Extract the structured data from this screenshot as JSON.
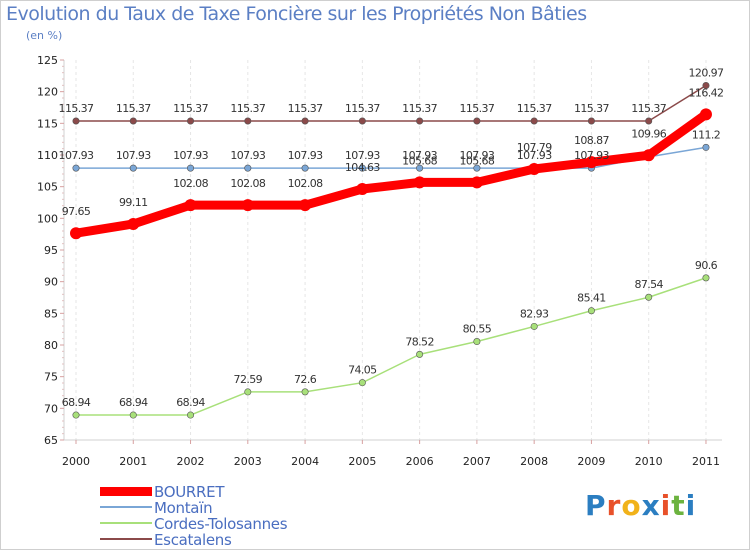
{
  "header": {
    "title": "Evolution du Taux de Taxe Foncière sur les Propriétés Non Bâties",
    "subtitle": "(en %)"
  },
  "chart_data": {
    "type": "line",
    "x": [
      "2000",
      "2001",
      "2002",
      "2003",
      "2004",
      "2005",
      "2006",
      "2007",
      "2008",
      "2009",
      "2010",
      "2011"
    ],
    "ylim": [
      65,
      125
    ],
    "yticks": [
      65,
      70,
      75,
      80,
      85,
      90,
      95,
      100,
      105,
      110,
      115,
      120,
      125
    ],
    "grid": "vertical-dashed",
    "legend_position": "bottom-left",
    "series": [
      {
        "name": "BOURRET",
        "color": "#ff0000",
        "values": [
          97.65,
          99.11,
          102.08,
          102.08,
          102.08,
          104.63,
          105.68,
          105.68,
          107.79,
          108.87,
          109.96,
          116.42
        ],
        "labels": [
          "97.65",
          "99.11",
          "102.08",
          "102.08",
          "102.08",
          "104.63",
          "105.68",
          "105.68",
          "107.79",
          "108.87",
          "109.96",
          "116.42"
        ]
      },
      {
        "name": "Montaïn",
        "color": "#7aa6d6",
        "values": [
          107.93,
          107.93,
          107.93,
          107.93,
          107.93,
          107.93,
          107.93,
          107.93,
          107.93,
          107.93,
          109.7,
          111.2
        ],
        "labels": [
          "107.93",
          "107.93",
          "107.93",
          "107.93",
          "107.93",
          "107.93",
          "107.93",
          "107.93",
          "107.93",
          "107.93",
          "",
          "111.2"
        ]
      },
      {
        "name": "Cordes-Tolosannes",
        "color": "#a8e07a",
        "values": [
          68.94,
          68.94,
          68.94,
          72.59,
          72.6,
          74.05,
          78.52,
          80.55,
          82.93,
          85.41,
          87.54,
          90.6
        ],
        "labels": [
          "68.94",
          "68.94",
          "68.94",
          "72.59",
          "72.6",
          "74.05",
          "78.52",
          "80.55",
          "82.93",
          "85.41",
          "87.54",
          "90.6"
        ]
      },
      {
        "name": "Escatalens",
        "color": "#8b4a4a",
        "values": [
          115.37,
          115.37,
          115.37,
          115.37,
          115.37,
          115.37,
          115.37,
          115.37,
          115.37,
          115.37,
          115.37,
          120.97
        ],
        "labels": [
          "115.37",
          "115.37",
          "115.37",
          "115.37",
          "115.37",
          "115.37",
          "115.37",
          "115.37",
          "115.37",
          "115.37",
          "115.37",
          "120.97"
        ]
      }
    ]
  },
  "logo": {
    "letters": [
      "P",
      "r",
      "o",
      "x",
      "i",
      "t",
      "i"
    ],
    "colors": [
      "#2b7ec1",
      "#e8512a",
      "#f1b21a",
      "#2b7ec1",
      "#e8512a",
      "#6cb33f",
      "#2b7ec1"
    ]
  }
}
